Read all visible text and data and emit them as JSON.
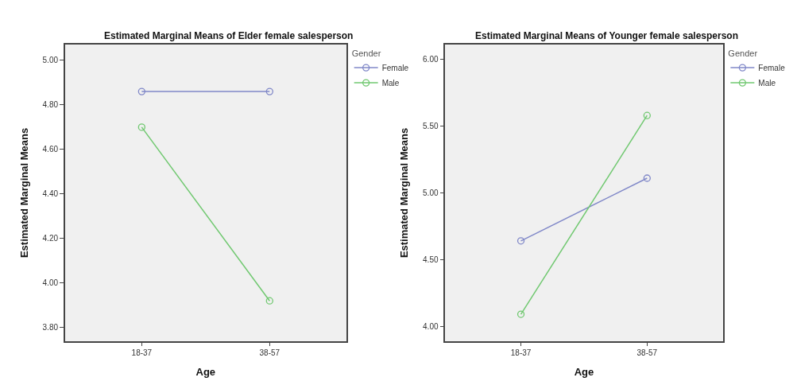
{
  "chart_data": [
    {
      "type": "line",
      "title": "Estimated Marginal Means of Elder female salesperson",
      "xlabel": "Age",
      "ylabel": "Estimated Marginal Means",
      "legend_title": "Gender",
      "categories": [
        "18-37",
        "38-57"
      ],
      "series": [
        {
          "name": "Female",
          "color": "#8088c8",
          "values": [
            4.86,
            4.86
          ]
        },
        {
          "name": "Male",
          "color": "#70c870",
          "values": [
            4.7,
            3.92
          ]
        }
      ],
      "ylim": [
        3.74,
        5.07
      ],
      "yticks": [
        {
          "value": 3.8,
          "label": "3.80"
        },
        {
          "value": 4.0,
          "label": "4.00"
        },
        {
          "value": 4.2,
          "label": "4.20"
        },
        {
          "value": 4.4,
          "label": "4.40"
        },
        {
          "value": 4.6,
          "label": "4.60"
        },
        {
          "value": 4.8,
          "label": "4.80"
        },
        {
          "value": 5.0,
          "label": "5.00"
        }
      ],
      "grid": false,
      "legend": "top right",
      "marker": "circle",
      "line_style": "solid"
    },
    {
      "type": "line",
      "title": "Estimated Marginal Means of Younger female salesperson",
      "xlabel": "Age",
      "ylabel": "Estimated Marginal Means",
      "legend_title": "Gender",
      "categories": [
        "18-37",
        "38-57"
      ],
      "series": [
        {
          "name": "Female",
          "color": "#8088c8",
          "values": [
            4.64,
            5.11
          ]
        },
        {
          "name": "Male",
          "color": "#70c870",
          "values": [
            4.09,
            5.58
          ]
        }
      ],
      "ylim": [
        3.89,
        6.11
      ],
      "yticks": [
        {
          "value": 4.0,
          "label": "4.00"
        },
        {
          "value": 4.5,
          "label": "4.50"
        },
        {
          "value": 5.0,
          "label": "5.00"
        },
        {
          "value": 5.5,
          "label": "5.50"
        },
        {
          "value": 6.0,
          "label": "6.00"
        }
      ],
      "grid": false,
      "legend": "top right",
      "marker": "circle",
      "line_style": "solid"
    }
  ]
}
